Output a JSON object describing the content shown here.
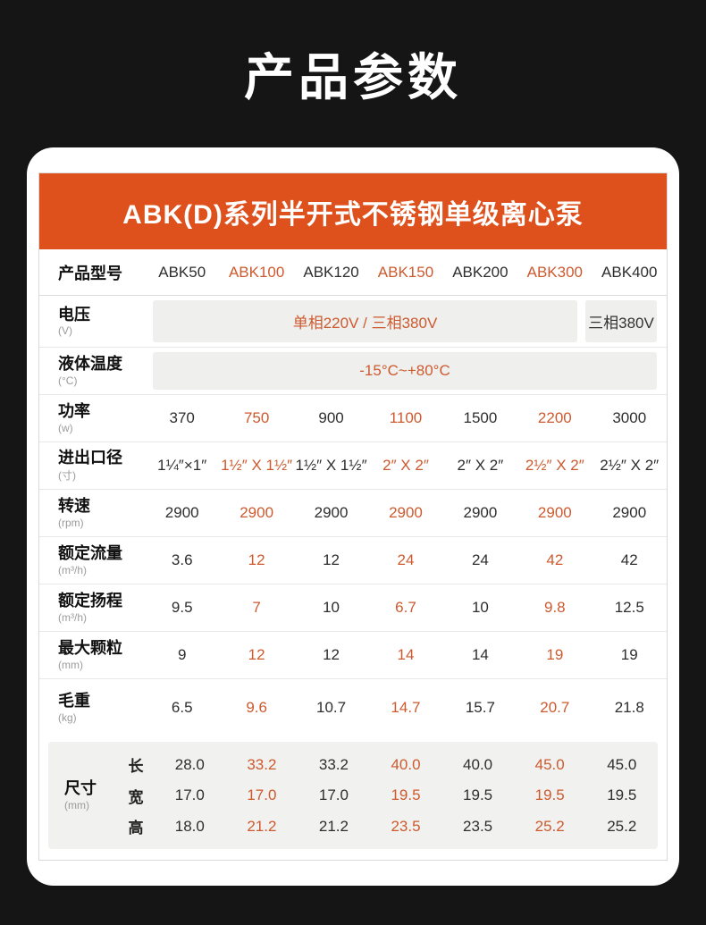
{
  "page": {
    "background": "#151515",
    "title": "产品参数"
  },
  "card": {
    "banner": {
      "title": "ABK(D)系列半开式不锈钢单级离心泵",
      "color": "#de501c"
    }
  },
  "colors": {
    "banner_orange": "#de501c",
    "highlight_orange": "#cd5a2f",
    "text_dark": "#2e2e2e",
    "unit_gray": "#9b9b9b",
    "box_gray": "#efefed",
    "dims_block_gray": "#f1f1ef",
    "page_dark": "#151515"
  },
  "table": {
    "header": {
      "label": "产品型号",
      "models": [
        "ABK50",
        "ABK100",
        "ABK120",
        "ABK150",
        "ABK200",
        "ABK300",
        "ABK400"
      ]
    },
    "orange_indices": [
      1,
      3,
      5
    ],
    "rows": [
      {
        "name": "电压",
        "unit": "(V)",
        "type": "merged-split",
        "merged_value": "单相220V / 三相380V",
        "last_value": "三相380V"
      },
      {
        "name": "液体温度",
        "unit": "(°C)",
        "type": "merged-full",
        "merged_value": "-15°C~+80°C"
      },
      {
        "name": "功率",
        "unit": "(w)",
        "type": "cells",
        "values": [
          "370",
          "750",
          "900",
          "1100",
          "1500",
          "2200",
          "3000"
        ]
      },
      {
        "name": "进出口径",
        "unit": "(寸)",
        "type": "cells",
        "values": [
          "1¼″×1″",
          "1½″ X 1½″",
          "1½″ X 1½″",
          "2″ X 2″",
          "2″ X 2″",
          "2½″ X 2″",
          "2½″ X 2″"
        ]
      },
      {
        "name": "转速",
        "unit": "(rpm)",
        "type": "cells",
        "values": [
          "2900",
          "2900",
          "2900",
          "2900",
          "2900",
          "2900",
          "2900"
        ]
      },
      {
        "name": "额定流量",
        "unit": "(m³/h)",
        "type": "cells",
        "values": [
          "3.6",
          "12",
          "12",
          "24",
          "24",
          "42",
          "42"
        ]
      },
      {
        "name": "额定扬程",
        "unit": "(m³/h)",
        "type": "cells",
        "values": [
          "9.5",
          "7",
          "10",
          "6.7",
          "10",
          "9.8",
          "12.5"
        ]
      },
      {
        "name": "最大颗粒",
        "unit": "(mm)",
        "type": "cells",
        "values": [
          "9",
          "12",
          "12",
          "14",
          "14",
          "19",
          "19"
        ]
      },
      {
        "name": "毛重",
        "unit": "(kg)",
        "type": "cells",
        "values": [
          "6.5",
          "9.6",
          "10.7",
          "14.7",
          "15.7",
          "20.7",
          "21.8"
        ]
      }
    ],
    "dimensions": {
      "name": "尺寸",
      "unit": "(mm)",
      "rows": [
        {
          "label": "长",
          "values": [
            "28.0",
            "33.2",
            "33.2",
            "40.0",
            "40.0",
            "45.0",
            "45.0"
          ]
        },
        {
          "label": "宽",
          "values": [
            "17.0",
            "17.0",
            "17.0",
            "19.5",
            "19.5",
            "19.5",
            "19.5"
          ]
        },
        {
          "label": "高",
          "values": [
            "18.0",
            "21.2",
            "21.2",
            "23.5",
            "23.5",
            "25.2",
            "25.2"
          ]
        }
      ]
    }
  }
}
